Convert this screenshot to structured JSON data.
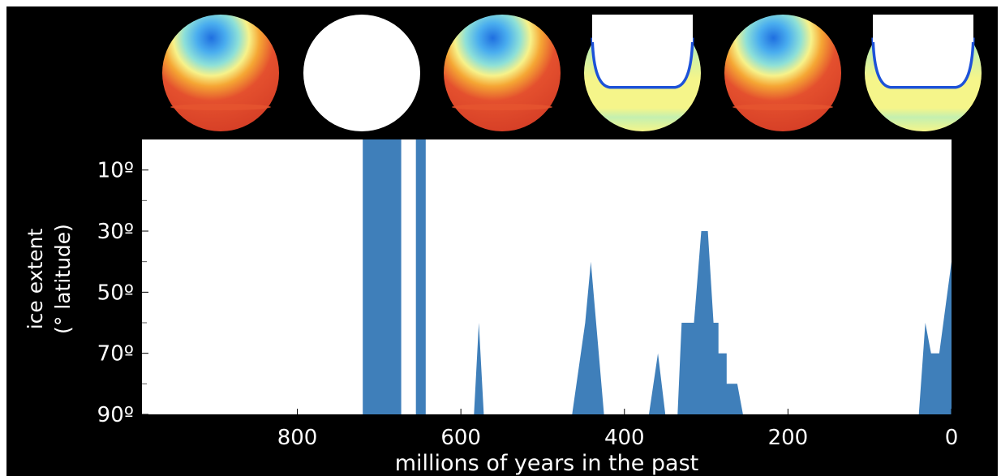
{
  "chart_data": {
    "type": "area",
    "xlabel": "millions of years in the past",
    "ylabel_line1": "ice extent",
    "ylabel_line2": "(° latitude)",
    "xlim": [
      990,
      0
    ],
    "ylim": [
      90,
      0
    ],
    "x_ticks": [
      {
        "value": 800,
        "label": "800"
      },
      {
        "value": 600,
        "label": "600"
      },
      {
        "value": 400,
        "label": "400"
      },
      {
        "value": 200,
        "label": "200"
      },
      {
        "value": 0,
        "label": "0"
      }
    ],
    "y_ticks": [
      {
        "value": 10,
        "label": "10º"
      },
      {
        "value": 30,
        "label": "30º"
      },
      {
        "value": 50,
        "label": "50º"
      },
      {
        "value": 70,
        "label": "70º"
      },
      {
        "value": 90,
        "label": "90º"
      }
    ],
    "y_minor_ticks": [
      20,
      40,
      60,
      80
    ],
    "series": [
      {
        "color": "#3f7fba",
        "points": [
          [
            990,
            90
          ],
          [
            720,
            90
          ],
          [
            720,
            0
          ],
          [
            673,
            0
          ],
          [
            673,
            90
          ],
          [
            655,
            90
          ],
          [
            655,
            0
          ],
          [
            643,
            0
          ],
          [
            643,
            90
          ],
          [
            584,
            90
          ],
          [
            578,
            60
          ],
          [
            572,
            90
          ],
          [
            464,
            90
          ],
          [
            448,
            60
          ],
          [
            441,
            40
          ],
          [
            425,
            90
          ],
          [
            370,
            90
          ],
          [
            359,
            70
          ],
          [
            350,
            90
          ],
          [
            335,
            90
          ],
          [
            330,
            60
          ],
          [
            315,
            60
          ],
          [
            306,
            30
          ],
          [
            298,
            30
          ],
          [
            291,
            60
          ],
          [
            285,
            60
          ],
          [
            285,
            70
          ],
          [
            275,
            70
          ],
          [
            275,
            80
          ],
          [
            262,
            80
          ],
          [
            255,
            90
          ],
          [
            40,
            90
          ],
          [
            32,
            60
          ],
          [
            25,
            70
          ],
          [
            15,
            70
          ],
          [
            0,
            40
          ],
          [
            0,
            90
          ]
        ]
      }
    ],
    "globes": [
      {
        "state": "warm",
        "palette": [
          "#1f6fe0",
          "#4aaeef",
          "#8de0d8",
          "#f7f28a",
          "#f5a634",
          "#e4502e",
          "#d23a24"
        ]
      },
      {
        "state": "snowball",
        "palette": [
          "#ffffff"
        ]
      },
      {
        "state": "warm",
        "palette": [
          "#1f6fe0",
          "#4aaeef",
          "#8de0d8",
          "#f7f28a",
          "#f5a634",
          "#e4502e",
          "#d23a24"
        ]
      },
      {
        "state": "icehouse",
        "palette": [
          "#ffffff",
          "#1d52d8",
          "#7fd3f2",
          "#c4f0b0",
          "#f5f58a"
        ]
      },
      {
        "state": "warm",
        "palette": [
          "#1f6fe0",
          "#4aaeef",
          "#8de0d8",
          "#f7f28a",
          "#f5a634",
          "#e4502e",
          "#d23a24"
        ]
      },
      {
        "state": "icehouse",
        "palette": [
          "#ffffff",
          "#1d52d8",
          "#7fd3f2",
          "#c4f0b0",
          "#f5f58a"
        ]
      }
    ]
  }
}
